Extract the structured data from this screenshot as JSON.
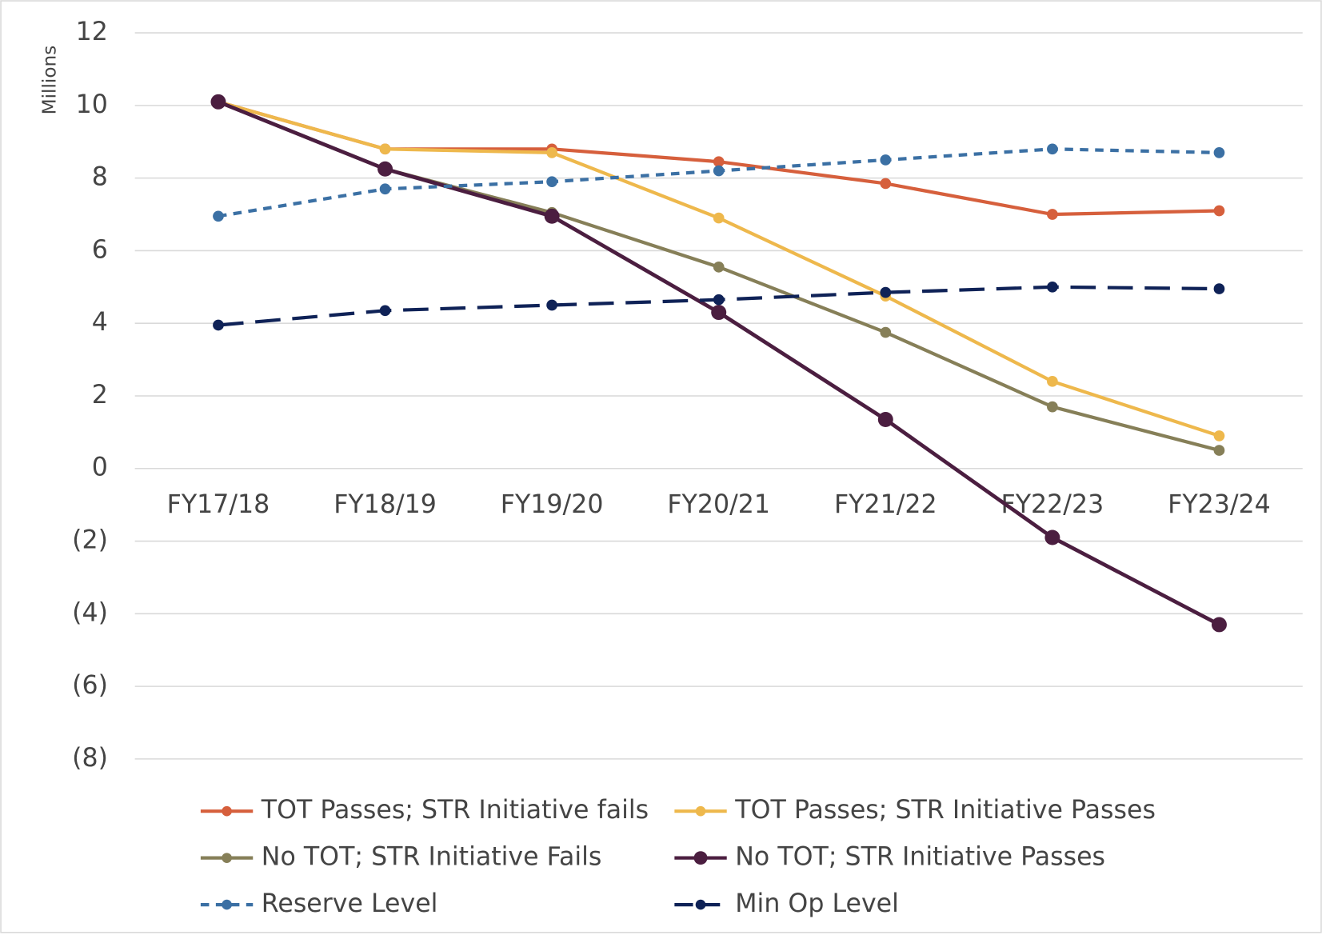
{
  "chart_data": {
    "type": "line",
    "y_axis_label": "Millions",
    "categories": [
      "FY17/18",
      "FY18/19",
      "FY19/20",
      "FY20/21",
      "FY21/22",
      "FY22/23",
      "FY23/24"
    ],
    "series": [
      {
        "name": "TOT Passes; STR Initiative fails",
        "color": "#d65f3c",
        "line_style": "solid",
        "values": [
          10.1,
          8.8,
          8.8,
          8.45,
          7.85,
          7.0,
          7.1
        ]
      },
      {
        "name": "TOT Passes; STR Initiative Passes",
        "color": "#eeb84c",
        "line_style": "solid",
        "values": [
          10.1,
          8.8,
          8.7,
          6.9,
          4.75,
          2.4,
          0.9
        ]
      },
      {
        "name": "No TOT; STR Initiative Fails",
        "color": "#867f58",
        "line_style": "solid",
        "values": [
          10.1,
          8.25,
          7.05,
          5.55,
          3.75,
          1.7,
          0.5
        ]
      },
      {
        "name": "No TOT; STR Initiative Passes",
        "color": "#4b1e40",
        "line_style": "solid",
        "values": [
          10.1,
          8.25,
          6.95,
          4.3,
          1.35,
          -1.9,
          -4.3
        ]
      },
      {
        "name": "Reserve Level",
        "color": "#3b70a4",
        "line_style": "dashed",
        "values": [
          6.95,
          7.7,
          7.9,
          8.2,
          8.5,
          8.8,
          8.7
        ]
      },
      {
        "name": "Min Op Level",
        "color": "#0f2257",
        "line_style": "long-dashed",
        "values": [
          3.95,
          4.35,
          4.5,
          4.65,
          4.85,
          5.0,
          4.95
        ]
      }
    ],
    "ylim": [
      -8,
      12
    ],
    "yticks": [
      {
        "value": -8,
        "label": "(8)"
      },
      {
        "value": -6,
        "label": "(6)"
      },
      {
        "value": -4,
        "label": "(4)"
      },
      {
        "value": -2,
        "label": "(2)"
      },
      0,
      2,
      4,
      6,
      8,
      10,
      12
    ],
    "grid": true,
    "legend": "bottom"
  }
}
